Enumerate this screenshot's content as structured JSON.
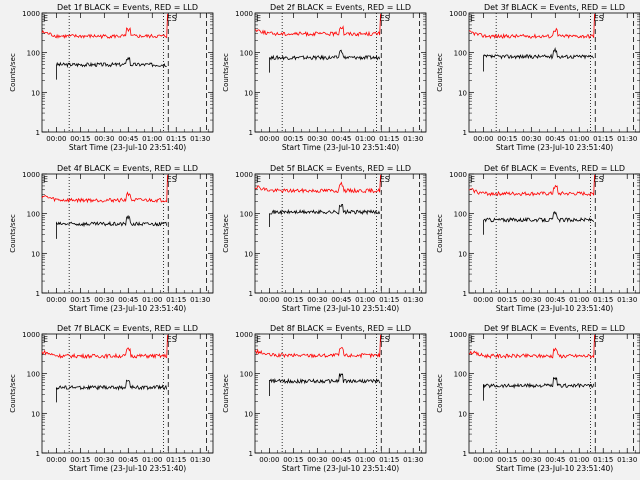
{
  "colors": {
    "events": "#000000",
    "lld": "#ff0000",
    "background": "#f2f2f2"
  },
  "chart_data": [
    {
      "type": "line",
      "title": "Det 1f BLACK = Events, RED = LLD",
      "xlabel": "Start Time (23-Jul-10 23:51:40)",
      "ylabel": "Counts/sec",
      "yscale": "log",
      "ylim": [
        1,
        1000
      ],
      "xticks": [
        "00:00",
        "00:15",
        "00:30",
        "00:45",
        "01:00",
        "01:15",
        "01:30"
      ],
      "yticks": [
        "1",
        "10",
        "100",
        "1000"
      ],
      "annotations": [
        "E",
        "ES"
      ],
      "series": [
        {
          "name": "Events",
          "start": "00:00",
          "end": "01:09",
          "base": 50,
          "spike_at": "00:45"
        },
        {
          "name": "LLD",
          "start": "-00:09",
          "end": "01:09",
          "base": 260,
          "spike_at": "00:45"
        }
      ]
    },
    {
      "type": "line",
      "title": "Det 2f BLACK = Events, RED = LLD",
      "xlabel": "Start Time (23-Jul-10 23:51:40)",
      "ylabel": "Counts/sec",
      "yscale": "log",
      "ylim": [
        1,
        1000
      ],
      "xticks": [
        "00:00",
        "00:15",
        "00:30",
        "00:45",
        "01:00",
        "01:15",
        "01:30"
      ],
      "yticks": [
        "1",
        "10",
        "100",
        "1000"
      ],
      "annotations": [
        "E",
        "ES"
      ],
      "series": [
        {
          "name": "Events",
          "start": "00:00",
          "end": "01:09",
          "base": 75,
          "spike_at": "00:45"
        },
        {
          "name": "LLD",
          "start": "-00:09",
          "end": "01:09",
          "base": 300,
          "spike_at": "00:45"
        }
      ]
    },
    {
      "type": "line",
      "title": "Det 3f BLACK = Events, RED = LLD",
      "xlabel": "Start Time (23-Jul-10 23:51:40)",
      "ylabel": "Counts/sec",
      "yscale": "log",
      "ylim": [
        1,
        1000
      ],
      "xticks": [
        "00:00",
        "00:15",
        "00:30",
        "00:45",
        "01:00",
        "01:15",
        "01:30"
      ],
      "yticks": [
        "1",
        "10",
        "100",
        "1000"
      ],
      "annotations": [
        "E",
        "ES"
      ],
      "series": [
        {
          "name": "Events",
          "start": "00:00",
          "end": "01:09",
          "base": 80,
          "spike_at": "00:45"
        },
        {
          "name": "LLD",
          "start": "-00:09",
          "end": "01:09",
          "base": 260,
          "spike_at": "00:45"
        }
      ]
    },
    {
      "type": "line",
      "title": "Det 4f BLACK = Events, RED = LLD",
      "xlabel": "Start Time (23-Jul-10 23:51:40)",
      "ylabel": "Counts/sec",
      "yscale": "log",
      "ylim": [
        1,
        1000
      ],
      "xticks": [
        "00:00",
        "00:15",
        "00:30",
        "00:45",
        "01:00",
        "01:15",
        "01:30"
      ],
      "yticks": [
        "1",
        "10",
        "100",
        "1000"
      ],
      "annotations": [
        "E",
        "ES"
      ],
      "series": [
        {
          "name": "Events",
          "start": "00:00",
          "end": "01:09",
          "base": 55,
          "spike_at": "00:45"
        },
        {
          "name": "LLD",
          "start": "-00:09",
          "end": "01:09",
          "base": 220,
          "spike_at": "00:45"
        }
      ]
    },
    {
      "type": "line",
      "title": "Det 5f BLACK = Events, RED = LLD",
      "xlabel": "Start Time (23-Jul-10 23:51:40)",
      "ylabel": "Counts/sec",
      "yscale": "log",
      "ylim": [
        1,
        1000
      ],
      "xticks": [
        "00:00",
        "00:15",
        "00:30",
        "00:45",
        "01:00",
        "01:15",
        "01:30"
      ],
      "yticks": [
        "1",
        "10",
        "100",
        "1000"
      ],
      "annotations": [
        "E",
        "ES"
      ],
      "series": [
        {
          "name": "Events",
          "start": "00:00",
          "end": "01:09",
          "base": 110,
          "spike_at": "00:45"
        },
        {
          "name": "LLD",
          "start": "-00:09",
          "end": "01:09",
          "base": 380,
          "spike_at": "00:45"
        }
      ]
    },
    {
      "type": "line",
      "title": "Det 6f BLACK = Events, RED = LLD",
      "xlabel": "Start Time (23-Jul-10 23:51:40)",
      "ylabel": "Counts/sec",
      "yscale": "log",
      "ylim": [
        1,
        1000
      ],
      "xticks": [
        "00:00",
        "00:15",
        "00:30",
        "00:45",
        "01:00",
        "01:15",
        "01:30"
      ],
      "yticks": [
        "1",
        "10",
        "100",
        "1000"
      ],
      "annotations": [
        "E",
        "ES"
      ],
      "series": [
        {
          "name": "Events",
          "start": "00:00",
          "end": "01:09",
          "base": 70,
          "spike_at": "00:45"
        },
        {
          "name": "LLD",
          "start": "-00:09",
          "end": "01:09",
          "base": 320,
          "spike_at": "00:45"
        }
      ]
    },
    {
      "type": "line",
      "title": "Det 7f BLACK = Events, RED = LLD",
      "xlabel": "Start Time (23-Jul-10 23:51:40)",
      "ylabel": "Counts/sec",
      "yscale": "log",
      "ylim": [
        1,
        1000
      ],
      "xticks": [
        "00:00",
        "00:15",
        "00:30",
        "00:45",
        "01:00",
        "01:15",
        "01:30"
      ],
      "yticks": [
        "1",
        "10",
        "100",
        "1000"
      ],
      "annotations": [
        "E",
        "ES"
      ],
      "series": [
        {
          "name": "Events",
          "start": "00:00",
          "end": "01:09",
          "base": 45,
          "spike_at": "00:45"
        },
        {
          "name": "LLD",
          "start": "-00:09",
          "end": "01:09",
          "base": 280,
          "spike_at": "00:45"
        }
      ]
    },
    {
      "type": "line",
      "title": "Det 8f BLACK = Events, RED = LLD",
      "xlabel": "Start Time (23-Jul-10 23:51:40)",
      "ylabel": "Counts/sec",
      "yscale": "log",
      "ylim": [
        1,
        1000
      ],
      "xticks": [
        "00:00",
        "00:15",
        "00:30",
        "00:45",
        "01:00",
        "01:15",
        "01:30"
      ],
      "yticks": [
        "1",
        "10",
        "100",
        "1000"
      ],
      "annotations": [
        "E",
        "ES"
      ],
      "series": [
        {
          "name": "Events",
          "start": "00:00",
          "end": "01:09",
          "base": 65,
          "spike_at": "00:45"
        },
        {
          "name": "LLD",
          "start": "-00:09",
          "end": "01:09",
          "base": 290,
          "spike_at": "00:45"
        }
      ]
    },
    {
      "type": "line",
      "title": "Det 9f BLACK = Events, RED = LLD",
      "xlabel": "Start Time (23-Jul-10 23:51:40)",
      "ylabel": "Counts/sec",
      "yscale": "log",
      "ylim": [
        1,
        1000
      ],
      "xticks": [
        "00:00",
        "00:15",
        "00:30",
        "00:45",
        "01:00",
        "01:15",
        "01:30"
      ],
      "yticks": [
        "1",
        "10",
        "100",
        "1000"
      ],
      "annotations": [
        "E",
        "ES"
      ],
      "series": [
        {
          "name": "Events",
          "start": "00:00",
          "end": "01:09",
          "base": 50,
          "spike_at": "00:45"
        },
        {
          "name": "LLD",
          "start": "-00:09",
          "end": "01:09",
          "base": 280,
          "spike_at": "00:45"
        }
      ]
    }
  ]
}
